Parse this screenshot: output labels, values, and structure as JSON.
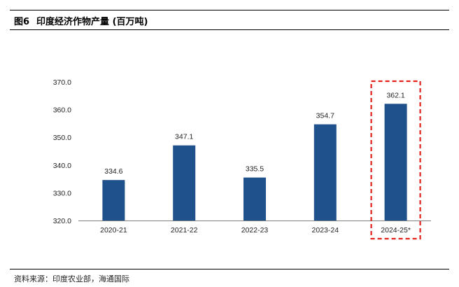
{
  "figure": {
    "number": "图6",
    "title": "印度经济作物产量 (百万吨)"
  },
  "source": "资料来源：印度农业部，海通国际",
  "colors": {
    "bar": "#1f518c",
    "highlight": "#e3211c",
    "axis": "#808080"
  },
  "chart_data": {
    "type": "bar",
    "categories": [
      "2020-21",
      "2021-22",
      "2022-23",
      "2023-24",
      "2024-25*"
    ],
    "values": [
      334.6,
      347.1,
      335.5,
      354.7,
      362.1
    ],
    "value_labels": [
      "334.6",
      "347.1",
      "335.5",
      "354.7",
      "362.1"
    ],
    "y_ticks": [
      "320.0",
      "330.0",
      "340.0",
      "350.0",
      "360.0",
      "370.0"
    ],
    "ylim": [
      320,
      370
    ],
    "grid": false,
    "legend": "none",
    "highlighted_category": "2024-25*"
  }
}
